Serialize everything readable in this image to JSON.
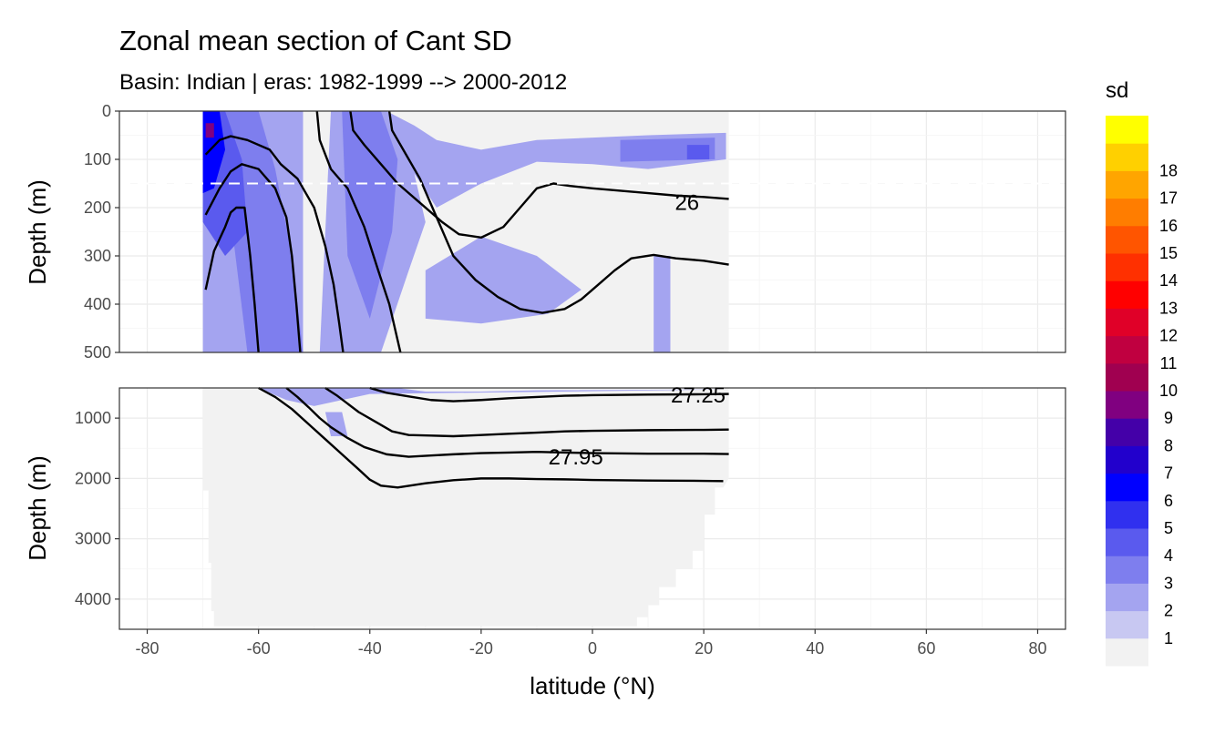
{
  "chart_data": {
    "type": "heatmap",
    "title": "Zonal mean section of Cant SD",
    "subtitle": "Basin: Indian | eras: 1982-1999 --> 2000-2012",
    "xlabel": "latitude (°N)",
    "ylabel_top": "Depth (m)",
    "ylabel_bottom": "Depth (m)",
    "xlim": [
      -85,
      85
    ],
    "x_ticks": [
      -80,
      -60,
      -40,
      -20,
      0,
      20,
      40,
      60,
      80
    ],
    "top_panel": {
      "ylim": [
        0,
        500
      ],
      "y_ticks": [
        0,
        100,
        200,
        300,
        400,
        500
      ]
    },
    "bottom_panel": {
      "ylim": [
        500,
        4500
      ],
      "y_ticks": [
        1000,
        2000,
        3000,
        4000
      ]
    },
    "reference_depth_m": 150,
    "data_extent_lat": [
      -70,
      24.5
    ],
    "legend": {
      "title": "sd",
      "labels": [
        "1",
        "2",
        "3",
        "4",
        "5",
        "6",
        "7",
        "8",
        "9",
        "10",
        "11",
        "12",
        "13",
        "14",
        "15",
        "16",
        "17",
        "18"
      ],
      "colors": [
        "#f2f2f2",
        "#c8c8f2",
        "#a4a4f0",
        "#7e7eee",
        "#5a5aee",
        "#3030ef",
        "#0000ff",
        "#2200cc",
        "#4400a8",
        "#800080",
        "#a00050",
        "#c00040",
        "#e00028",
        "#ff0000",
        "#ff3000",
        "#ff5500",
        "#ff7d00",
        "#ffa500",
        "#ffd000",
        "#ffff00"
      ]
    },
    "isopycnal_labels": [
      {
        "text": "26",
        "lat": 17,
        "depth": 190
      },
      {
        "text": "27.25",
        "lat": 19,
        "depth": 620
      },
      {
        "text": "27.95",
        "lat": -3,
        "depth": 1650
      }
    ],
    "isopycnals_top": [
      {
        "points": [
          [
            -69.5,
            90
          ],
          [
            -67,
            60
          ],
          [
            -65,
            52
          ],
          [
            -62,
            60
          ],
          [
            -58,
            80
          ],
          [
            -56,
            110
          ],
          [
            -53,
            140
          ],
          [
            -50,
            200
          ],
          [
            -48,
            280
          ],
          [
            -46.5,
            360
          ],
          [
            -45.5,
            440
          ],
          [
            -44.8,
            500
          ]
        ]
      },
      {
        "points": [
          [
            -69.5,
            215
          ],
          [
            -67,
            160
          ],
          [
            -65,
            125
          ],
          [
            -63,
            110
          ],
          [
            -60,
            120
          ],
          [
            -57,
            160
          ],
          [
            -55,
            220
          ],
          [
            -54,
            300
          ],
          [
            -53.2,
            400
          ],
          [
            -52.5,
            500
          ]
        ]
      },
      {
        "points": [
          [
            -69.5,
            370
          ],
          [
            -68,
            290
          ],
          [
            -66,
            240
          ],
          [
            -65,
            210
          ],
          [
            -64,
            200
          ],
          [
            -62.5,
            200
          ],
          [
            -61.5,
            300
          ],
          [
            -60.7,
            400
          ],
          [
            -60,
            500
          ]
        ]
      },
      {
        "points": [
          [
            -49.5,
            0
          ],
          [
            -49,
            60
          ],
          [
            -47,
            120
          ],
          [
            -44,
            160
          ],
          [
            -41,
            240
          ],
          [
            -38.5,
            330
          ],
          [
            -36.5,
            400
          ],
          [
            -34.5,
            500
          ]
        ]
      },
      {
        "points": [
          [
            -43.5,
            0
          ],
          [
            -43,
            40
          ],
          [
            -41,
            70
          ],
          [
            -38,
            110
          ],
          [
            -35,
            150
          ],
          [
            -31,
            190
          ],
          [
            -27,
            230
          ],
          [
            -24,
            255
          ],
          [
            -20,
            262
          ],
          [
            -16,
            240
          ],
          [
            -13,
            200
          ],
          [
            -10,
            160
          ],
          [
            -7,
            150
          ],
          [
            -4,
            155
          ],
          [
            0,
            160
          ],
          [
            5,
            165
          ],
          [
            10,
            170
          ],
          [
            15,
            175
          ],
          [
            20,
            178
          ],
          [
            24.5,
            182
          ]
        ]
      },
      {
        "points": [
          [
            -36.5,
            0
          ],
          [
            -36,
            40
          ],
          [
            -34,
            80
          ],
          [
            -31,
            140
          ],
          [
            -28,
            220
          ],
          [
            -25,
            300
          ],
          [
            -21,
            350
          ],
          [
            -17,
            385
          ],
          [
            -13,
            410
          ],
          [
            -9,
            418
          ],
          [
            -5,
            410
          ],
          [
            -2,
            390
          ],
          [
            1,
            360
          ],
          [
            4,
            330
          ],
          [
            7,
            305
          ],
          [
            11,
            298
          ],
          [
            15,
            305
          ],
          [
            20,
            310
          ],
          [
            24.5,
            318
          ]
        ]
      }
    ],
    "isopycnals_bottom": [
      {
        "points": [
          [
            -40,
            500
          ],
          [
            -37,
            580
          ],
          [
            -33,
            640
          ],
          [
            -29,
            700
          ],
          [
            -25,
            720
          ],
          [
            -20,
            700
          ],
          [
            -15,
            670
          ],
          [
            -10,
            650
          ],
          [
            -5,
            630
          ],
          [
            0,
            620
          ],
          [
            10,
            610
          ],
          [
            20,
            605
          ],
          [
            24.5,
            600
          ]
        ]
      },
      {
        "points": [
          [
            -48,
            500
          ],
          [
            -46,
            620
          ],
          [
            -44,
            760
          ],
          [
            -42,
            900
          ],
          [
            -39,
            1060
          ],
          [
            -36,
            1220
          ],
          [
            -33,
            1280
          ],
          [
            -29,
            1290
          ],
          [
            -25,
            1300
          ],
          [
            -20,
            1280
          ],
          [
            -15,
            1260
          ],
          [
            -10,
            1240
          ],
          [
            -5,
            1220
          ],
          [
            0,
            1210
          ],
          [
            10,
            1200
          ],
          [
            20,
            1195
          ],
          [
            24.5,
            1190
          ]
        ]
      },
      {
        "points": [
          [
            -55,
            500
          ],
          [
            -53,
            650
          ],
          [
            -51,
            820
          ],
          [
            -49,
            1000
          ],
          [
            -47,
            1150
          ],
          [
            -44,
            1330
          ],
          [
            -41,
            1480
          ],
          [
            -37,
            1600
          ],
          [
            -33,
            1640
          ],
          [
            -29,
            1620
          ],
          [
            -25,
            1600
          ],
          [
            -20,
            1580
          ],
          [
            -15,
            1570
          ],
          [
            -10,
            1560
          ],
          [
            -5,
            1570
          ],
          [
            0,
            1580
          ],
          [
            10,
            1590
          ],
          [
            20,
            1590
          ],
          [
            24.5,
            1595
          ]
        ]
      },
      {
        "points": [
          [
            -60,
            500
          ],
          [
            -57,
            650
          ],
          [
            -54,
            850
          ],
          [
            -51,
            1100
          ],
          [
            -48,
            1350
          ],
          [
            -45,
            1600
          ],
          [
            -42,
            1850
          ],
          [
            -40,
            2020
          ],
          [
            -38,
            2120
          ],
          [
            -35,
            2150
          ],
          [
            -30,
            2080
          ],
          [
            -25,
            2030
          ],
          [
            -20,
            2000
          ],
          [
            -15,
            2000
          ],
          [
            -10,
            2010
          ],
          [
            -5,
            2015
          ],
          [
            0,
            2025
          ],
          [
            10,
            2035
          ],
          [
            20,
            2040
          ],
          [
            23.5,
            2045
          ]
        ]
      }
    ],
    "shading_top": [
      {
        "sd": 2,
        "points": [
          [
            -70,
            0
          ],
          [
            -52,
            0
          ],
          [
            -52,
            500
          ],
          [
            -70,
            500
          ]
        ]
      },
      {
        "sd": 2,
        "points": [
          [
            -47,
            0
          ],
          [
            -37,
            0
          ],
          [
            -33,
            80
          ],
          [
            -30,
            230
          ],
          [
            -33,
            330
          ],
          [
            -38,
            500
          ],
          [
            -49,
            500
          ]
        ]
      },
      {
        "sd": 2,
        "points": [
          [
            -37,
            0
          ],
          [
            -32,
            30
          ],
          [
            -28,
            60
          ],
          [
            -20,
            80
          ],
          [
            -10,
            60
          ],
          [
            0,
            55
          ],
          [
            10,
            50
          ],
          [
            24,
            45
          ],
          [
            24,
            100
          ],
          [
            10,
            120
          ],
          [
            0,
            110
          ],
          [
            -10,
            105
          ],
          [
            -20,
            150
          ],
          [
            -28,
            200
          ],
          [
            -32,
            130
          ]
        ]
      },
      {
        "sd": 2,
        "points": [
          [
            -30,
            330
          ],
          [
            -20,
            260
          ],
          [
            -10,
            300
          ],
          [
            -2,
            370
          ],
          [
            -8,
            420
          ],
          [
            -20,
            440
          ],
          [
            -30,
            430
          ]
        ]
      },
      {
        "sd": 2,
        "points": [
          [
            11,
            300
          ],
          [
            14,
            300
          ],
          [
            14,
            500
          ],
          [
            11,
            500
          ]
        ]
      },
      {
        "sd": 3,
        "points": [
          [
            -70,
            0
          ],
          [
            -60,
            0
          ],
          [
            -57,
            120
          ],
          [
            -54,
            300
          ],
          [
            -52,
            500
          ],
          [
            -62,
            500
          ],
          [
            -65,
            220
          ],
          [
            -70,
            160
          ]
        ]
      },
      {
        "sd": 3,
        "points": [
          [
            -45,
            0
          ],
          [
            -38,
            0
          ],
          [
            -35,
            100
          ],
          [
            -36,
            250
          ],
          [
            -40,
            430
          ],
          [
            -44,
            300
          ]
        ]
      },
      {
        "sd": 3,
        "points": [
          [
            5,
            60
          ],
          [
            22,
            55
          ],
          [
            22,
            100
          ],
          [
            5,
            105
          ]
        ]
      },
      {
        "sd": 4,
        "points": [
          [
            -70,
            0
          ],
          [
            -66,
            0
          ],
          [
            -63,
            100
          ],
          [
            -62,
            250
          ],
          [
            -66,
            300
          ],
          [
            -70,
            230
          ]
        ]
      },
      {
        "sd": 4,
        "points": [
          [
            17,
            70
          ],
          [
            21,
            70
          ],
          [
            21,
            100
          ],
          [
            17,
            100
          ]
        ]
      },
      {
        "sd": 6,
        "points": [
          [
            -70,
            0
          ],
          [
            -67,
            0
          ],
          [
            -66,
            80
          ],
          [
            -68,
            160
          ],
          [
            -70,
            170
          ]
        ]
      },
      {
        "sd": 9,
        "points": [
          [
            -69.5,
            25
          ],
          [
            -68,
            25
          ],
          [
            -68,
            55
          ],
          [
            -69.5,
            55
          ]
        ]
      }
    ],
    "shading_bottom": [
      {
        "sd": 2,
        "points": [
          [
            -60,
            500
          ],
          [
            -35,
            500
          ],
          [
            -30,
            560
          ],
          [
            -20,
            560
          ],
          [
            -10,
            540
          ],
          [
            10,
            530
          ],
          [
            24,
            525
          ],
          [
            -40,
            600
          ],
          [
            -50,
            800
          ],
          [
            -55,
            700
          ]
        ]
      },
      {
        "sd": 2,
        "points": [
          [
            -48,
            900
          ],
          [
            -45,
            900
          ],
          [
            -44,
            1300
          ],
          [
            -47,
            1300
          ]
        ]
      }
    ]
  }
}
